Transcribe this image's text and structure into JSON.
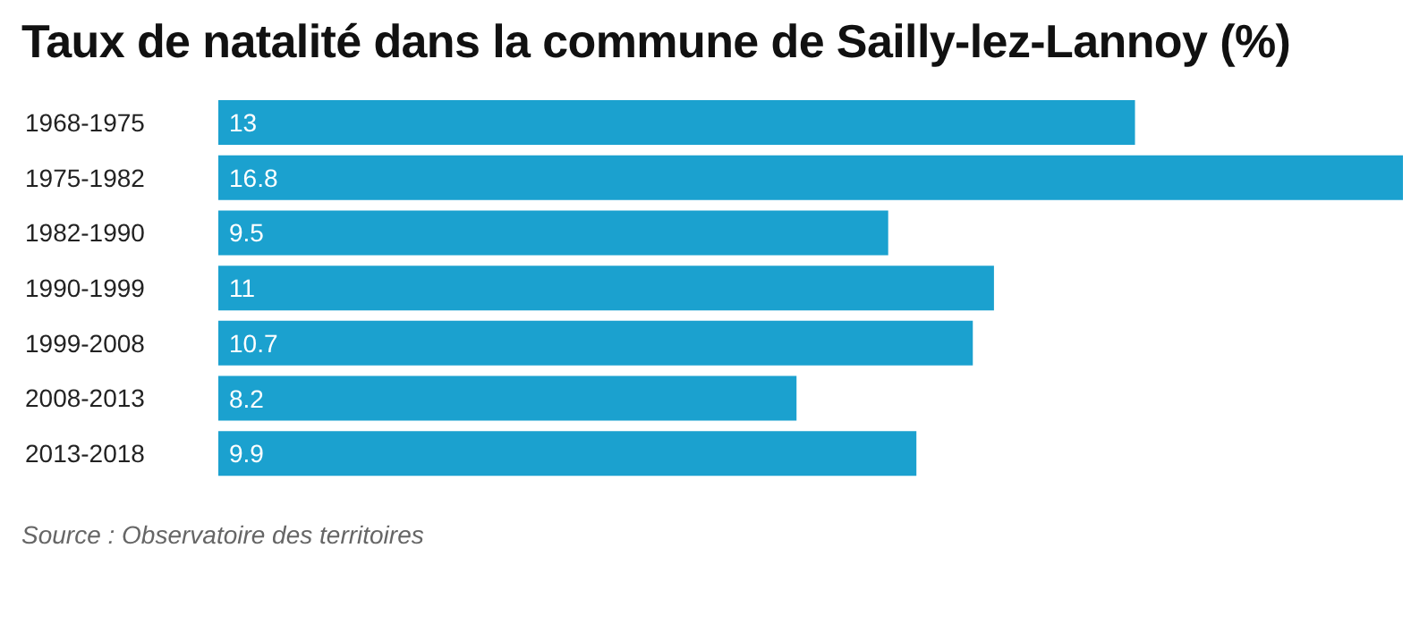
{
  "chart_data": {
    "type": "bar",
    "orientation": "horizontal",
    "title": "Taux de natalité dans la commune de Sailly-lez-Lannoy (%)",
    "categories": [
      "1968-1975",
      "1975-1982",
      "1982-1990",
      "1990-1999",
      "1999-2008",
      "2008-2013",
      "2013-2018"
    ],
    "values": [
      13,
      16.8,
      9.5,
      11,
      10.7,
      8.2,
      9.9
    ],
    "color": "#1ba1cf",
    "data_labels": true,
    "annotations": [
      "Source : Observatoire des territoires"
    ]
  }
}
